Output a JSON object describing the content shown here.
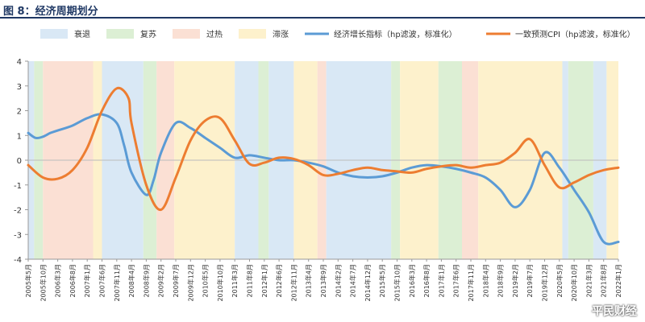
{
  "header": {
    "title": "图 8：经济周期划分"
  },
  "watermark": {
    "text": "平民财经"
  },
  "chart_data": {
    "type": "line",
    "title": "",
    "xlabel": "",
    "ylabel": "",
    "ylim": [
      -4,
      4
    ],
    "yticks": [
      4,
      3,
      2,
      1,
      0,
      -1,
      -2,
      -3,
      -4
    ],
    "grid": false,
    "legend_position": "top",
    "x_tick_labels": [
      "2005年5月",
      "2005年10月",
      "2006年3月",
      "2006年8月",
      "2007年1月",
      "2007年6月",
      "2007年11月",
      "2008年4月",
      "2008年9月",
      "2009年2月",
      "2009年7月",
      "2009年12月",
      "2010年5月",
      "2010年10月",
      "2011年3月",
      "2011年8月",
      "2012年1月",
      "2012年6月",
      "2012年11月",
      "2013年4月",
      "2013年9月",
      "2014年2月",
      "2014年7月",
      "2014年12月",
      "2015年5月",
      "2015年10月",
      "2016年3月",
      "2016年8月",
      "2017年1月",
      "2017年6月",
      "2017年11月",
      "2018年4月",
      "2018年9月",
      "2019年2月",
      "2019年7月",
      "2019年12月",
      "2020年5月",
      "2020年10月",
      "2021年3月",
      "2021年8月",
      "2022年1月"
    ],
    "phases": [
      {
        "name": "衰退",
        "color": "#d9e8f5"
      },
      {
        "name": "复苏",
        "color": "#dcefd4"
      },
      {
        "name": "过热",
        "color": "#fbe0d4"
      },
      {
        "name": "滞涨",
        "color": "#fdf1cc"
      }
    ],
    "phase_bands": [
      {
        "phase": "衰退",
        "from": 0.0,
        "to": 0.4
      },
      {
        "phase": "复苏",
        "from": 0.4,
        "to": 1.0
      },
      {
        "phase": "过热",
        "from": 1.0,
        "to": 4.4
      },
      {
        "phase": "滞涨",
        "from": 4.4,
        "to": 5.0
      },
      {
        "phase": "衰退",
        "from": 5.0,
        "to": 7.8
      },
      {
        "phase": "复苏",
        "from": 7.8,
        "to": 8.7
      },
      {
        "phase": "过热",
        "from": 8.7,
        "to": 9.9
      },
      {
        "phase": "滞涨",
        "from": 9.9,
        "to": 14.0
      },
      {
        "phase": "衰退",
        "from": 14.0,
        "to": 15.6
      },
      {
        "phase": "复苏",
        "from": 15.6,
        "to": 16.3
      },
      {
        "phase": "衰退",
        "from": 16.3,
        "to": 18.0
      },
      {
        "phase": "滞涨",
        "from": 18.0,
        "to": 19.6
      },
      {
        "phase": "过热",
        "from": 19.6,
        "to": 20.2
      },
      {
        "phase": "衰退",
        "from": 20.2,
        "to": 24.6
      },
      {
        "phase": "复苏",
        "from": 24.6,
        "to": 25.2
      },
      {
        "phase": "滞涨",
        "from": 25.2,
        "to": 27.8
      },
      {
        "phase": "复苏",
        "from": 27.8,
        "to": 29.4
      },
      {
        "phase": "过热",
        "from": 29.4,
        "to": 30.5
      },
      {
        "phase": "滞涨",
        "from": 30.5,
        "to": 36.2
      },
      {
        "phase": "衰退",
        "from": 36.2,
        "to": 36.6
      },
      {
        "phase": "复苏",
        "from": 36.6,
        "to": 38.3
      },
      {
        "phase": "衰退",
        "from": 38.3,
        "to": 39.2
      },
      {
        "phase": "滞涨",
        "from": 39.2,
        "to": 40.0
      }
    ],
    "series": [
      {
        "name": "经济增长指标（hp滤波，标准化）",
        "color": "#5b9bd5",
        "x": [
          0,
          0.5,
          1,
          1.5,
          2,
          3,
          4,
          5,
          6,
          6.5,
          7,
          8,
          8.5,
          9,
          10,
          11,
          12,
          13,
          14,
          15,
          16,
          17,
          18,
          19,
          20,
          21,
          22,
          23,
          24,
          25,
          26,
          27,
          28,
          29,
          30,
          31,
          32,
          33,
          34,
          35,
          36,
          37,
          38,
          39,
          40
        ],
        "values": [
          1.1,
          0.9,
          0.95,
          1.1,
          1.2,
          1.4,
          1.7,
          1.85,
          1.5,
          0.6,
          -0.5,
          -1.4,
          -0.8,
          0.3,
          1.5,
          1.3,
          0.9,
          0.5,
          0.1,
          0.2,
          0.1,
          0.0,
          0.0,
          -0.1,
          -0.25,
          -0.5,
          -0.65,
          -0.7,
          -0.65,
          -0.5,
          -0.3,
          -0.2,
          -0.25,
          -0.35,
          -0.5,
          -0.7,
          -1.2,
          -1.9,
          -1.2,
          0.3,
          -0.3,
          -1.2,
          -2.1,
          -3.3,
          -3.3
        ]
      },
      {
        "name": "一致预测CPI（hp滤波，标准化）",
        "color": "#ed7d31",
        "x": [
          0,
          1,
          2,
          3,
          4,
          5,
          6,
          6.8,
          7,
          8,
          9,
          10,
          11,
          12,
          13,
          14,
          15,
          16,
          17,
          18,
          19,
          20,
          21,
          22,
          23,
          24,
          25,
          26,
          27,
          28,
          29,
          30,
          31,
          32,
          33,
          34,
          35,
          36,
          37,
          38,
          39,
          40
        ],
        "values": [
          -0.2,
          -0.7,
          -0.75,
          -0.4,
          0.5,
          2.0,
          2.9,
          2.5,
          1.5,
          -1.0,
          -2.0,
          -0.7,
          0.8,
          1.6,
          1.7,
          0.8,
          -0.15,
          -0.1,
          0.1,
          0.05,
          -0.2,
          -0.6,
          -0.55,
          -0.4,
          -0.3,
          -0.4,
          -0.45,
          -0.5,
          -0.35,
          -0.25,
          -0.2,
          -0.3,
          -0.2,
          -0.1,
          0.3,
          0.85,
          -0.2,
          -1.1,
          -0.9,
          -0.6,
          -0.4,
          -0.3
        ]
      }
    ]
  }
}
